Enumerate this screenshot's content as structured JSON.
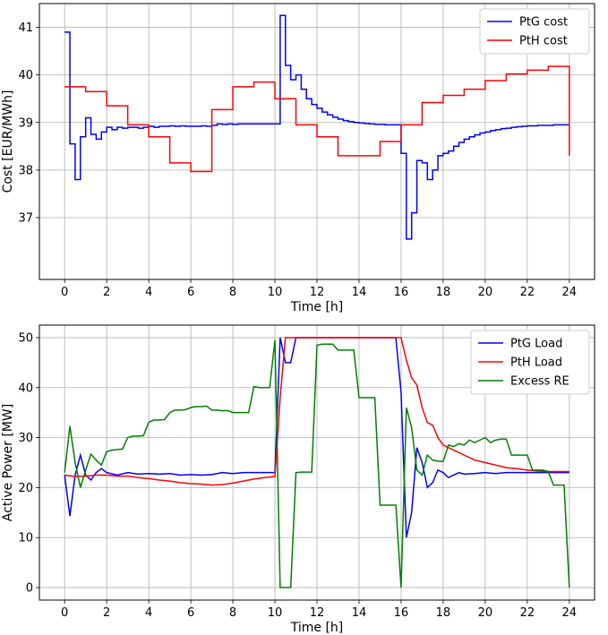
{
  "chart_data": [
    {
      "type": "line",
      "step": true,
      "xlabel": "Time [h]",
      "ylabel": "Cost [EUR/MWh]",
      "xlim": [
        -1.2,
        25.2
      ],
      "ylim": [
        35.7,
        41.5
      ],
      "xticks": [
        0,
        2,
        4,
        6,
        8,
        10,
        12,
        14,
        16,
        18,
        20,
        22,
        24
      ],
      "yticks": [
        37,
        38,
        39,
        40,
        41
      ],
      "grid": true,
      "legend_position": "top-right",
      "series": [
        {
          "name": "PtG cost",
          "color": "#0000ff",
          "x": [
            0,
            0.25,
            0.5,
            0.75,
            1,
            1.25,
            1.5,
            1.75,
            2,
            2.25,
            2.5,
            2.75,
            3,
            3.25,
            3.5,
            3.75,
            4,
            4.25,
            4.5,
            4.75,
            5,
            5.25,
            5.5,
            5.75,
            6,
            6.25,
            6.5,
            6.75,
            7,
            7.25,
            7.5,
            7.75,
            8,
            8.25,
            8.5,
            8.75,
            9,
            9.25,
            9.5,
            9.75,
            10,
            10.25,
            10.5,
            10.75,
            11,
            11.25,
            11.5,
            11.75,
            12,
            12.25,
            12.5,
            12.75,
            13,
            13.25,
            13.5,
            13.75,
            14,
            14.25,
            14.5,
            14.75,
            15,
            15.25,
            15.5,
            15.75,
            16,
            16.25,
            16.5,
            16.75,
            17,
            17.25,
            17.5,
            17.75,
            18,
            18.25,
            18.5,
            18.75,
            19,
            19.25,
            19.5,
            19.75,
            20,
            20.25,
            20.5,
            20.75,
            21,
            21.25,
            21.5,
            21.75,
            22,
            22.25,
            22.5,
            22.75,
            23,
            23.25,
            23.5,
            23.75,
            24
          ],
          "values": [
            40.9,
            38.55,
            37.8,
            38.7,
            39.1,
            38.75,
            38.65,
            38.8,
            38.9,
            38.85,
            38.9,
            38.88,
            38.9,
            38.9,
            38.88,
            38.9,
            38.92,
            38.9,
            38.92,
            38.92,
            38.93,
            38.92,
            38.93,
            38.92,
            38.92,
            38.92,
            38.93,
            38.92,
            38.94,
            38.97,
            38.96,
            38.97,
            38.96,
            38.97,
            38.97,
            38.97,
            38.97,
            38.97,
            38.97,
            38.97,
            38.97,
            41.25,
            40.2,
            39.9,
            40.0,
            39.7,
            39.5,
            39.38,
            39.3,
            39.22,
            39.16,
            39.11,
            39.07,
            39.04,
            39.02,
            39.0,
            38.99,
            38.98,
            38.97,
            38.96,
            38.96,
            38.95,
            38.95,
            38.95,
            38.35,
            36.55,
            37.1,
            38.2,
            38.15,
            37.8,
            38.0,
            38.3,
            38.35,
            38.4,
            38.5,
            38.58,
            38.65,
            38.7,
            38.74,
            38.78,
            38.8,
            38.83,
            38.85,
            38.87,
            38.88,
            38.9,
            38.91,
            38.92,
            38.93,
            38.93,
            38.94,
            38.94,
            38.94,
            38.95,
            38.95,
            38.95,
            38.95
          ]
        },
        {
          "name": "PtH cost",
          "color": "#ff0000",
          "x": [
            0,
            1,
            2,
            3,
            4,
            5,
            6,
            7,
            8,
            9,
            10,
            11,
            12,
            13,
            14,
            15,
            16,
            17,
            18,
            19,
            20,
            21,
            22,
            23,
            24
          ],
          "values": [
            39.75,
            39.65,
            39.35,
            38.95,
            38.7,
            38.15,
            37.97,
            39.27,
            39.75,
            39.85,
            39.5,
            38.95,
            38.7,
            38.3,
            38.3,
            38.6,
            38.95,
            39.42,
            39.57,
            39.7,
            39.88,
            40.02,
            40.1,
            40.18,
            38.3
          ]
        }
      ]
    },
    {
      "type": "line",
      "xlabel": "Time [h]",
      "ylabel": "Active Power [MW]",
      "xlim": [
        -1.2,
        25.2
      ],
      "ylim": [
        -2.5,
        52.5
      ],
      "xticks": [
        0,
        2,
        4,
        6,
        8,
        10,
        12,
        14,
        16,
        18,
        20,
        22,
        24
      ],
      "yticks": [
        0,
        10,
        20,
        30,
        40,
        50
      ],
      "grid": true,
      "legend_position": "top-right",
      "series": [
        {
          "name": "PtG Load",
          "color": "#0000ff",
          "x": [
            0,
            0.25,
            0.5,
            0.75,
            1,
            1.25,
            1.5,
            1.75,
            2,
            2.5,
            3,
            3.5,
            4,
            4.5,
            5,
            5.5,
            6,
            6.5,
            7,
            7.5,
            8,
            8.5,
            9,
            9.5,
            10,
            10.25,
            10.5,
            10.75,
            11,
            12,
            13,
            14,
            15,
            15.75,
            16,
            16.25,
            16.5,
            16.75,
            17,
            17.25,
            17.5,
            17.75,
            18,
            18.25,
            18.5,
            18.75,
            19,
            19.5,
            20,
            20.5,
            21,
            21.5,
            22,
            22.5,
            23,
            23.5,
            24
          ],
          "values": [
            22.5,
            14.3,
            22.5,
            26.5,
            22.5,
            21.5,
            23.0,
            23.8,
            23.0,
            22.5,
            23.0,
            22.7,
            22.8,
            22.7,
            22.8,
            22.5,
            22.6,
            22.5,
            22.6,
            23.0,
            22.8,
            23.0,
            23.0,
            23.0,
            23.0,
            50,
            45,
            45,
            50,
            50,
            50,
            50,
            50,
            50,
            39,
            10,
            15,
            28,
            25,
            20,
            21,
            23.5,
            23.0,
            22.0,
            22.5,
            23.0,
            22.7,
            22.8,
            23.0,
            22.8,
            23.0,
            23.0,
            23.0,
            23.0,
            23.0,
            23.0,
            23.0
          ]
        },
        {
          "name": "PtH Load",
          "color": "#ff0000",
          "x": [
            0,
            0.5,
            1,
            1.5,
            2,
            2.5,
            3,
            3.5,
            4,
            4.5,
            5,
            5.5,
            6,
            6.5,
            7,
            7.5,
            8,
            8.5,
            9,
            9.5,
            10,
            10.25,
            10.5,
            11,
            12,
            13,
            14,
            15,
            16,
            16.25,
            16.5,
            16.75,
            17,
            17.25,
            17.5,
            17.75,
            18,
            18.5,
            19,
            19.5,
            20,
            20.5,
            21,
            21.5,
            22,
            22.5,
            23,
            23.5,
            24
          ],
          "values": [
            22.5,
            22.2,
            22.3,
            22.5,
            22.5,
            22.3,
            22.3,
            22.0,
            21.8,
            21.5,
            21.3,
            21.0,
            20.8,
            20.7,
            20.5,
            20.6,
            20.9,
            21.3,
            21.7,
            22.0,
            22.2,
            38,
            50,
            50,
            50,
            50,
            50,
            50,
            50,
            45.5,
            42,
            40.5,
            36,
            33,
            32.5,
            30,
            28.5,
            27.5,
            26.5,
            25.5,
            25,
            24.5,
            24,
            23.8,
            23.5,
            23.3,
            23.2,
            23.2,
            23.2
          ]
        },
        {
          "name": "Excess RE",
          "color": "#008000",
          "x": [
            0,
            0.25,
            0.5,
            0.75,
            1,
            1.25,
            1.5,
            1.75,
            2,
            2.25,
            2.5,
            2.75,
            3,
            3.25,
            3.5,
            3.75,
            4,
            4.25,
            4.5,
            4.75,
            5,
            5.25,
            5.5,
            5.75,
            6,
            6.25,
            6.5,
            6.75,
            7,
            7.25,
            7.5,
            7.75,
            8,
            8.25,
            8.5,
            8.75,
            9,
            9.25,
            9.5,
            9.75,
            10,
            10.25,
            10.5,
            10.75,
            11,
            11.25,
            11.5,
            11.75,
            12,
            12.25,
            12.5,
            12.75,
            13,
            13.25,
            13.5,
            13.75,
            14,
            14.25,
            14.5,
            14.75,
            15,
            15.25,
            15.5,
            15.75,
            16,
            16.25,
            16.5,
            16.75,
            17,
            17.25,
            17.5,
            17.75,
            18,
            18.25,
            18.5,
            18.75,
            19,
            19.25,
            19.5,
            19.75,
            20,
            20.25,
            20.5,
            20.75,
            21,
            21.25,
            21.5,
            21.75,
            22,
            22.25,
            22.5,
            22.75,
            23,
            23.25,
            23.5,
            23.75,
            24
          ],
          "values": [
            23.0,
            32.3,
            25.0,
            20.0,
            23.5,
            26.7,
            25.5,
            24.5,
            27.2,
            27.5,
            27.6,
            27.7,
            30.0,
            30.3,
            30.3,
            30.4,
            33.1,
            33.5,
            33.5,
            33.6,
            35.0,
            35.5,
            35.5,
            35.6,
            36.0,
            36.2,
            36.2,
            36.3,
            35.5,
            35.5,
            35.4,
            35.4,
            35.0,
            35.0,
            35.0,
            35.0,
            40.2,
            40.0,
            40.0,
            40.0,
            49.5,
            0,
            0,
            0,
            23.0,
            23.1,
            23.1,
            23.1,
            48.5,
            48.7,
            48.7,
            48.7,
            47.5,
            47.5,
            47.5,
            47.5,
            38.0,
            38.0,
            38.0,
            38.0,
            16.5,
            16.5,
            16.5,
            16.5,
            0,
            36.0,
            32.0,
            23.5,
            22.5,
            26.5,
            25.5,
            25.3,
            25.2,
            28.5,
            28.2,
            28.8,
            28.5,
            29.5,
            29.0,
            29.5,
            30.0,
            29.0,
            29.5,
            29.7,
            29.7,
            26.5,
            26.5,
            26.5,
            26.5,
            23.5,
            23.5,
            23.5,
            23.2,
            20.5,
            20.5,
            20.5,
            0
          ]
        }
      ]
    }
  ]
}
